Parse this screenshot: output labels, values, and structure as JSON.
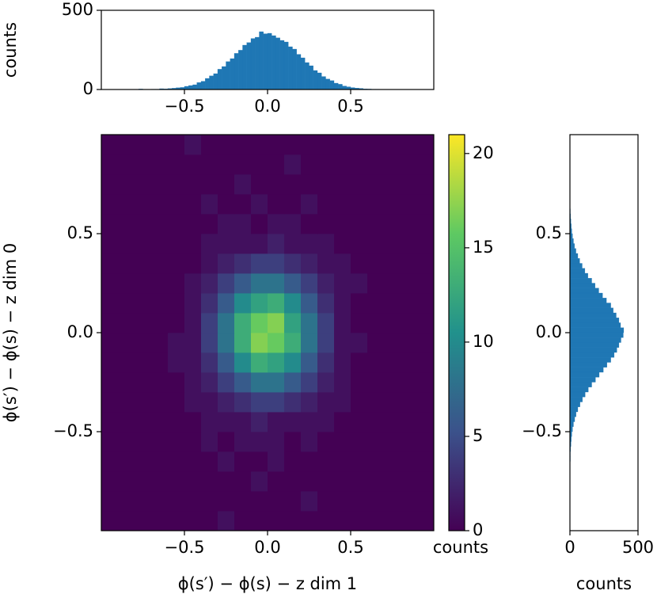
{
  "chart_data": [
    {
      "type": "histogram",
      "color": "#1f77b4",
      "bins": [
        -0.8,
        -0.775,
        -0.75,
        -0.725,
        -0.7,
        -0.675,
        -0.65,
        -0.625,
        -0.6,
        -0.575,
        -0.55,
        -0.525,
        -0.5,
        -0.475,
        -0.45,
        -0.425,
        -0.4,
        -0.375,
        -0.35,
        -0.325,
        -0.3,
        -0.275,
        -0.25,
        -0.225,
        -0.2,
        -0.175,
        -0.15,
        -0.125,
        -0.1,
        -0.075,
        -0.05,
        -0.025,
        0,
        0.025,
        0.05,
        0.075,
        0.1,
        0.125,
        0.15,
        0.175,
        0.2,
        0.225,
        0.25,
        0.275,
        0.3,
        0.325,
        0.35,
        0.375,
        0.4,
        0.425,
        0.45,
        0.475,
        0.5,
        0.525,
        0.55,
        0.575,
        0.6,
        0.625,
        0.65,
        0.675,
        0.7,
        0.725,
        0.75,
        0.775,
        0.8
      ],
      "counts": [
        0,
        3,
        0,
        1,
        2,
        2,
        5,
        4,
        6,
        8,
        11,
        13,
        20,
        25,
        30,
        44,
        52,
        70,
        86,
        100,
        128,
        145,
        176,
        195,
        228,
        248,
        280,
        296,
        322,
        330,
        365,
        352,
        355,
        340,
        326,
        310,
        300,
        270,
        255,
        222,
        200,
        170,
        150,
        120,
        105,
        82,
        66,
        56,
        40,
        33,
        22,
        17,
        12,
        9,
        7,
        4,
        3,
        2,
        2,
        1,
        0,
        1,
        0,
        0
      ],
      "xlim": [
        -1,
        1
      ],
      "xticks": [
        {
          "value": -0.5,
          "label": "−0.5"
        },
        {
          "value": 0,
          "label": "0.0"
        },
        0.5
      ],
      "ylim": [
        0,
        500
      ],
      "yticks": [
        0,
        500
      ],
      "ylabel": "counts"
    },
    {
      "type": "heatmap",
      "colormap": "viridis",
      "xbins": [
        -1,
        -0.9,
        -0.8,
        -0.7,
        -0.6,
        -0.5,
        -0.4,
        -0.3,
        -0.2,
        -0.1,
        0,
        0.1,
        0.2,
        0.3,
        0.4,
        0.5,
        0.6,
        0.7,
        0.8,
        0.9,
        1
      ],
      "ybins": [
        -1,
        -0.9,
        -0.8,
        -0.7,
        -0.6,
        -0.5,
        -0.4,
        -0.3,
        -0.2,
        -0.1,
        0,
        0.1,
        0.2,
        0.3,
        0.4,
        0.5,
        0.6,
        0.7,
        0.8,
        0.9,
        1
      ],
      "z": [
        [
          0,
          0,
          0,
          0,
          0,
          0,
          0,
          1,
          0,
          0,
          0,
          0,
          0,
          0,
          0,
          0,
          0,
          0,
          0,
          0
        ],
        [
          0,
          0,
          0,
          0,
          0,
          0,
          0,
          0,
          0,
          0,
          0,
          0,
          1,
          0,
          0,
          0,
          0,
          0,
          0,
          0
        ],
        [
          0,
          0,
          0,
          0,
          0,
          0,
          0,
          0,
          0,
          1,
          0,
          0,
          0,
          0,
          0,
          0,
          0,
          0,
          0,
          0
        ],
        [
          0,
          0,
          0,
          0,
          0,
          0,
          0,
          1,
          0,
          0,
          1,
          0,
          0,
          0,
          0,
          0,
          0,
          0,
          0,
          0
        ],
        [
          0,
          0,
          0,
          0,
          0,
          0,
          1,
          0,
          1,
          1,
          1,
          0,
          1,
          0,
          0,
          0,
          0,
          0,
          0,
          0
        ],
        [
          0,
          0,
          0,
          0,
          0,
          0,
          1,
          1,
          1,
          2,
          1,
          1,
          1,
          1,
          0,
          0,
          0,
          0,
          0,
          0
        ],
        [
          0,
          0,
          0,
          0,
          0,
          1,
          1,
          2,
          3,
          4,
          4,
          3,
          2,
          1,
          1,
          0,
          0,
          0,
          0,
          0
        ],
        [
          0,
          0,
          0,
          0,
          0,
          1,
          2,
          4,
          6,
          8,
          8,
          6,
          4,
          2,
          1,
          0,
          0,
          0,
          0,
          0
        ],
        [
          0,
          0,
          0,
          0,
          1,
          1,
          3,
          6,
          10,
          13,
          12,
          10,
          6,
          3,
          1,
          0,
          0,
          0,
          0,
          0
        ],
        [
          0,
          0,
          0,
          0,
          1,
          1,
          4,
          8,
          13,
          17,
          16,
          13,
          8,
          4,
          1,
          1,
          0,
          0,
          0,
          0
        ],
        [
          0,
          0,
          0,
          0,
          0,
          1,
          4,
          8,
          13,
          16,
          17,
          12,
          8,
          4,
          1,
          0,
          0,
          0,
          0,
          0
        ],
        [
          0,
          0,
          0,
          0,
          0,
          1,
          3,
          6,
          10,
          12,
          13,
          10,
          6,
          3,
          1,
          0,
          0,
          0,
          0,
          0
        ],
        [
          0,
          0,
          0,
          0,
          0,
          1,
          2,
          4,
          6,
          8,
          8,
          6,
          4,
          2,
          1,
          1,
          0,
          0,
          0,
          0
        ],
        [
          0,
          0,
          0,
          0,
          0,
          0,
          1,
          2,
          3,
          4,
          4,
          3,
          2,
          1,
          1,
          0,
          0,
          0,
          0,
          0
        ],
        [
          0,
          0,
          0,
          0,
          0,
          0,
          1,
          1,
          1,
          1,
          2,
          1,
          1,
          1,
          0,
          0,
          0,
          0,
          0,
          0
        ],
        [
          0,
          0,
          0,
          0,
          0,
          0,
          0,
          1,
          1,
          0,
          1,
          1,
          0,
          0,
          0,
          0,
          0,
          0,
          0,
          0
        ],
        [
          0,
          0,
          0,
          0,
          0,
          0,
          1,
          0,
          0,
          1,
          0,
          0,
          1,
          0,
          0,
          0,
          0,
          0,
          0,
          0
        ],
        [
          0,
          0,
          0,
          0,
          0,
          0,
          0,
          0,
          1,
          0,
          0,
          0,
          0,
          0,
          0,
          0,
          0,
          0,
          0,
          0
        ],
        [
          0,
          0,
          0,
          0,
          0,
          0,
          0,
          0,
          0,
          0,
          0,
          1,
          0,
          0,
          0,
          0,
          0,
          0,
          0,
          0
        ],
        [
          0,
          0,
          0,
          0,
          0,
          1,
          0,
          0,
          0,
          0,
          0,
          0,
          0,
          0,
          0,
          0,
          0,
          0,
          0,
          0
        ]
      ],
      "zlim": [
        0,
        21
      ],
      "zticks": [
        0,
        5,
        10,
        15,
        20
      ],
      "zlabel": "counts",
      "xlim": [
        -1,
        1
      ],
      "xticks": [
        {
          "value": -0.5,
          "label": "−0.5"
        },
        {
          "value": 0,
          "label": "0.0"
        },
        0.5
      ],
      "ylim": [
        -1,
        1
      ],
      "yticks": [
        {
          "value": -0.5,
          "label": "−0.5"
        },
        {
          "value": 0,
          "label": "0.0"
        },
        0.5
      ],
      "xlabel": "ϕ(s′) − ϕ(s) − z dim 1",
      "ylabel": "ϕ(s′) − ϕ(s) − z dim 0"
    },
    {
      "type": "histogram",
      "orientation": "horizontal",
      "color": "#1f77b4",
      "bins": [
        -0.8,
        -0.775,
        -0.75,
        -0.725,
        -0.7,
        -0.675,
        -0.65,
        -0.625,
        -0.6,
        -0.575,
        -0.55,
        -0.525,
        -0.5,
        -0.475,
        -0.45,
        -0.425,
        -0.4,
        -0.375,
        -0.35,
        -0.325,
        -0.3,
        -0.275,
        -0.25,
        -0.225,
        -0.2,
        -0.175,
        -0.15,
        -0.125,
        -0.1,
        -0.075,
        -0.05,
        -0.025,
        0,
        0.025,
        0.05,
        0.075,
        0.1,
        0.125,
        0.15,
        0.175,
        0.2,
        0.225,
        0.25,
        0.275,
        0.3,
        0.325,
        0.35,
        0.375,
        0.4,
        0.425,
        0.45,
        0.475,
        0.5,
        0.525,
        0.55,
        0.575,
        0.6,
        0.625,
        0.65,
        0.675,
        0.7,
        0.725,
        0.75,
        0.775,
        0.8
      ],
      "counts": [
        0,
        0,
        0,
        1,
        1,
        2,
        3,
        3,
        5,
        8,
        10,
        14,
        19,
        26,
        35,
        45,
        58,
        74,
        92,
        112,
        135,
        160,
        188,
        215,
        245,
        272,
        300,
        325,
        345,
        360,
        375,
        392,
        395,
        372,
        360,
        340,
        318,
        300,
        268,
        240,
        212,
        185,
        160,
        132,
        110,
        90,
        72,
        58,
        44,
        34,
        26,
        19,
        14,
        10,
        7,
        5,
        3,
        2,
        2,
        1,
        1,
        0,
        0,
        0
      ],
      "xlim": [
        0,
        500
      ],
      "xticks": [
        0,
        500
      ],
      "xlabel": "counts",
      "ylim": [
        -1,
        1
      ],
      "yticks": [
        {
          "value": -0.5,
          "label": "−0.5"
        },
        {
          "value": 0,
          "label": "0.0"
        },
        0.5
      ]
    }
  ]
}
